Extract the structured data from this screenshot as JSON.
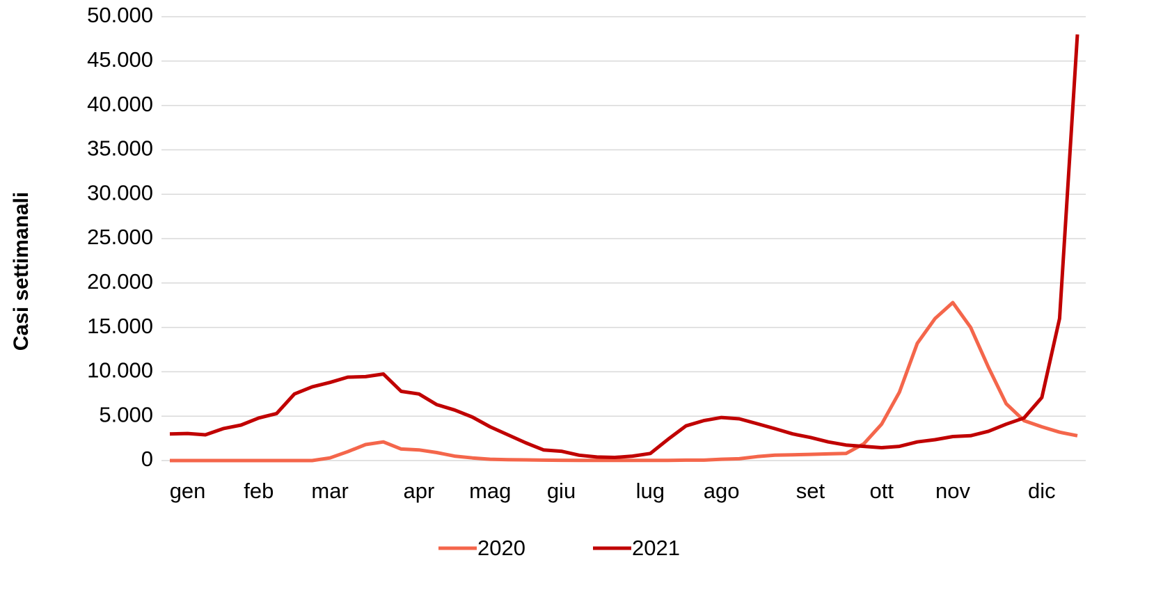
{
  "chart_data": {
    "type": "line",
    "y_label": "Casi settimanali",
    "categories": [
      null,
      "gen",
      null,
      null,
      null,
      "feb",
      null,
      null,
      null,
      "mar",
      null,
      null,
      null,
      null,
      "apr",
      null,
      null,
      null,
      "mag",
      null,
      null,
      null,
      "giu",
      null,
      null,
      null,
      null,
      "lug",
      null,
      null,
      null,
      "ago",
      null,
      null,
      null,
      null,
      "set",
      null,
      null,
      null,
      "ott",
      null,
      null,
      null,
      "nov",
      null,
      null,
      null,
      null,
      "dic",
      null,
      null
    ],
    "series": [
      {
        "name": "2020",
        "color": "#f4664b",
        "values": [
          0,
          0,
          0,
          0,
          0,
          0,
          0,
          0,
          0,
          300,
          1000,
          1800,
          2100,
          1300,
          1200,
          900,
          500,
          300,
          150,
          100,
          80,
          50,
          30,
          20,
          20,
          20,
          20,
          20,
          20,
          50,
          50,
          150,
          200,
          450,
          600,
          650,
          700,
          750,
          800,
          1900,
          4100,
          7700,
          13200,
          16000,
          17800,
          15000,
          10500,
          6400,
          4500,
          3800,
          3200,
          2800
        ]
      },
      {
        "name": "2021",
        "color": "#c00000",
        "values": [
          3000,
          3050,
          2900,
          3600,
          4000,
          4800,
          5300,
          7500,
          8300,
          8800,
          9400,
          9450,
          9750,
          7800,
          7500,
          6300,
          5700,
          4900,
          3800,
          2900,
          2000,
          1200,
          1050,
          600,
          400,
          350,
          500,
          800,
          2400,
          3900,
          4500,
          4850,
          4700,
          4150,
          3600,
          3000,
          2600,
          2100,
          1750,
          1600,
          1450,
          1600,
          2100,
          2350,
          2700,
          2800,
          3300,
          4100,
          4800,
          7100,
          16000,
          48000
        ]
      }
    ],
    "ylim": [
      0,
      50000
    ],
    "yticks": [
      {
        "value": 0,
        "label": "0"
      },
      {
        "value": 5000,
        "label": "5.000"
      },
      {
        "value": 10000,
        "label": "10.000"
      },
      {
        "value": 15000,
        "label": "15.000"
      },
      {
        "value": 20000,
        "label": "20.000"
      },
      {
        "value": 25000,
        "label": "25.000"
      },
      {
        "value": 30000,
        "label": "30.000"
      },
      {
        "value": 35000,
        "label": "35.000"
      },
      {
        "value": 40000,
        "label": "40.000"
      },
      {
        "value": 45000,
        "label": "45.000"
      },
      {
        "value": 50000,
        "label": "50.000"
      }
    ],
    "grid": true,
    "legend": "bottom"
  }
}
